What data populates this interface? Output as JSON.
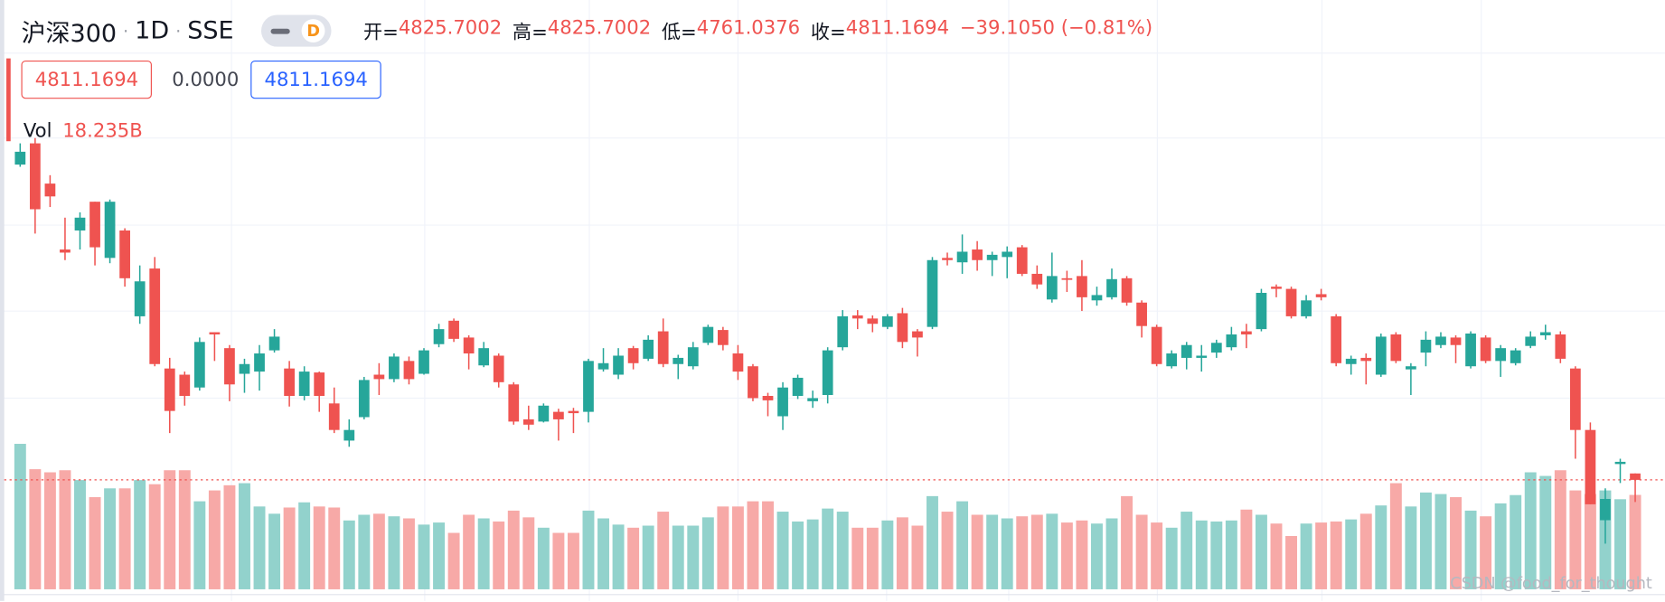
{
  "header": {
    "symbol": "沪深300",
    "interval": "1D",
    "exchange": "SSE",
    "badge": "D",
    "open_label": "开=",
    "high_label": "高=",
    "low_label": "低=",
    "close_label": "收=",
    "change": "−39.1050 (−0.81%)",
    "middle_box": "0.0000",
    "vol_label": "Vol",
    "vol_value": "18.235B",
    "watermark": "CSDN @food_for_thought"
  },
  "chart_data": {
    "type": "candlestick",
    "up_color": "#26a69a",
    "down_color": "#ef5350",
    "volume_up_color": "#92d2cc",
    "volume_down_color": "#f7a9a7",
    "open": [
      5524,
      5572,
      5481,
      5332,
      5375,
      5440,
      5313,
      5375,
      5181,
      5289,
      5063,
      5049,
      5020,
      5145,
      5109,
      5051,
      5056,
      5104,
      5063,
      5001,
      5054,
      4984,
      4900,
      4953,
      5049,
      5039,
      5080,
      5051,
      5118,
      5171,
      5133,
      5070,
      5092,
      5027,
      4948,
      4943,
      4965,
      4967,
      4965,
      5061,
      5049,
      5109,
      5085,
      5147,
      5073,
      5068,
      5121,
      5150,
      5097,
      5068,
      5001,
      4955,
      5001,
      4989,
      5003,
      5111,
      5183,
      5176,
      5157,
      5188,
      5147,
      5157,
      5313,
      5303,
      5332,
      5308,
      5315,
      5337,
      5277,
      5219,
      5267,
      5272,
      5217,
      5224,
      5267,
      5212,
      5157,
      5068,
      5087,
      5087,
      5099,
      5111,
      5147,
      5152,
      5248,
      5243,
      5181,
      5231,
      5181,
      5073,
      5087,
      5049,
      5140,
      5061,
      5099,
      5116,
      5133,
      5068,
      5133,
      5080,
      5075,
      5114,
      5138,
      5140,
      5063,
      4924,
      4720,
      4847,
      4825.7002
    ],
    "high": [
      5572,
      5584,
      5500,
      5404,
      5416,
      5440,
      5445,
      5380,
      5296,
      5315,
      5087,
      5056,
      5133,
      5145,
      5116,
      5085,
      5116,
      5152,
      5080,
      5068,
      5056,
      5020,
      4948,
      5044,
      5075,
      5097,
      5090,
      5109,
      5164,
      5176,
      5138,
      5123,
      5097,
      5032,
      4979,
      4984,
      4972,
      4974,
      5085,
      5109,
      5109,
      5114,
      5138,
      5176,
      5094,
      5123,
      5162,
      5157,
      5116,
      5073,
      5008,
      5032,
      5049,
      5013,
      5111,
      5195,
      5195,
      5183,
      5186,
      5200,
      5152,
      5315,
      5325,
      5366,
      5351,
      5327,
      5339,
      5342,
      5296,
      5325,
      5284,
      5308,
      5248,
      5289,
      5272,
      5217,
      5162,
      5104,
      5123,
      5116,
      5128,
      5157,
      5164,
      5243,
      5253,
      5248,
      5229,
      5243,
      5186,
      5092,
      5097,
      5142,
      5145,
      5075,
      5147,
      5145,
      5138,
      5147,
      5138,
      5116,
      5109,
      5147,
      5162,
      5147,
      5068,
      4941,
      4792,
      4859,
      4825.7002
    ],
    "low": [
      5519,
      5368,
      5428,
      5308,
      5332,
      5296,
      5301,
      5248,
      5164,
      5068,
      4917,
      4979,
      5013,
      5080,
      4989,
      5008,
      5013,
      5099,
      4977,
      4991,
      4965,
      4917,
      4886,
      4948,
      5003,
      5032,
      5027,
      5049,
      5111,
      5123,
      5061,
      5066,
      5020,
      4936,
      4924,
      4941,
      4900,
      4917,
      4941,
      5056,
      5039,
      5061,
      5080,
      5066,
      5039,
      5061,
      5116,
      5104,
      5037,
      4989,
      4955,
      4924,
      4994,
      4974,
      4984,
      5104,
      5152,
      5145,
      5152,
      5109,
      5090,
      5152,
      5296,
      5277,
      5284,
      5272,
      5267,
      5272,
      5243,
      5212,
      5236,
      5193,
      5205,
      5219,
      5205,
      5133,
      5068,
      5063,
      5061,
      5056,
      5087,
      5104,
      5109,
      5147,
      5224,
      5176,
      5176,
      5217,
      5068,
      5049,
      5027,
      5044,
      5075,
      5003,
      5068,
      5109,
      5075,
      5063,
      5075,
      5044,
      5070,
      5109,
      5128,
      5075,
      4859,
      4756,
      4667,
      4804,
      4761.0376
    ],
    "close": [
      5553,
      5423,
      5452,
      5325,
      5404,
      5337,
      5440,
      5267,
      5260,
      5073,
      4967,
      5001,
      5123,
      5140,
      5027,
      5073,
      5097,
      5135,
      5001,
      5056,
      5001,
      4924,
      4924,
      5037,
      5039,
      5090,
      5039,
      5104,
      5152,
      5130,
      5097,
      5109,
      5032,
      4943,
      4936,
      4979,
      4948,
      4962,
      5080,
      5075,
      5092,
      5075,
      5128,
      5073,
      5087,
      5111,
      5157,
      5116,
      5056,
      4996,
      4991,
      5020,
      5042,
      4996,
      5104,
      5181,
      5176,
      5164,
      5181,
      5123,
      5133,
      5308,
      5308,
      5327,
      5308,
      5320,
      5327,
      5277,
      5253,
      5272,
      5265,
      5224,
      5229,
      5265,
      5212,
      5159,
      5073,
      5097,
      5116,
      5092,
      5121,
      5140,
      5140,
      5234,
      5243,
      5181,
      5217,
      5224,
      5075,
      5085,
      5080,
      5135,
      5080,
      5068,
      5128,
      5135,
      5116,
      5142,
      5080,
      5109,
      5104,
      5135,
      5145,
      5085,
      4924,
      4756,
      4768,
      4852,
      4811.1694
    ],
    "volume": [
      28.1,
      23.2,
      22.6,
      23.0,
      21.1,
      17.8,
      19.5,
      19.5,
      21.1,
      20.3,
      23.0,
      23.0,
      17.0,
      19.1,
      20.1,
      20.5,
      16.0,
      14.6,
      15.8,
      16.8,
      16.0,
      15.8,
      13.3,
      14.4,
      14.6,
      14.1,
      13.7,
      12.5,
      12.9,
      10.9,
      14.4,
      13.7,
      13.1,
      15.2,
      13.9,
      11.9,
      10.9,
      10.9,
      15.2,
      13.7,
      12.5,
      11.9,
      12.3,
      15.0,
      12.3,
      12.3,
      13.9,
      16.0,
      16.0,
      17.0,
      17.0,
      15.0,
      13.1,
      13.5,
      15.6,
      15.0,
      11.9,
      11.9,
      13.3,
      13.9,
      12.3,
      18.0,
      15.0,
      17.0,
      14.4,
      14.4,
      13.7,
      14.1,
      14.4,
      14.6,
      12.9,
      13.3,
      12.7,
      13.7,
      18.0,
      14.4,
      12.9,
      11.9,
      15.0,
      13.3,
      13.1,
      13.3,
      15.4,
      14.4,
      12.7,
      10.3,
      12.7,
      12.9,
      13.1,
      13.5,
      14.6,
      16.2,
      20.5,
      16.0,
      18.7,
      18.4,
      17.8,
      15.2,
      14.1,
      16.6,
      18.2,
      22.6,
      21.9,
      23.0,
      19.1,
      18.4,
      19.1,
      17.4,
      18.235
    ]
  }
}
